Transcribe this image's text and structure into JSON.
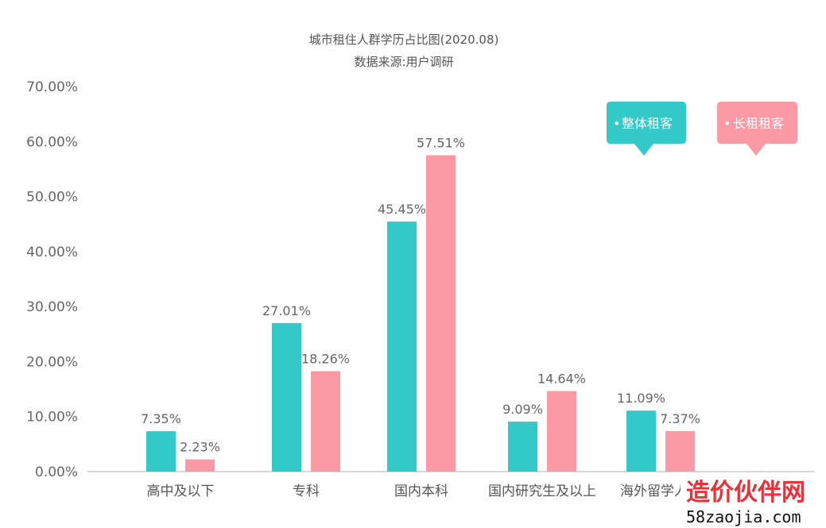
{
  "chart_data": {
    "type": "bar",
    "title": "城市租住人群学历占比图(2020.08)",
    "subtitle": "数据来源:用户调研",
    "categories": [
      "高中及以下",
      "专科",
      "国内本科",
      "国内研究生及以上",
      "海外留学人员"
    ],
    "series": [
      {
        "name": "整体租客",
        "color": "#33c9c9",
        "values": [
          7.35,
          27.01,
          45.45,
          9.09,
          11.09
        ],
        "labels": [
          "7.35%",
          "27.01%",
          "45.45%",
          "9.09%",
          "11.09%"
        ]
      },
      {
        "name": "长租租客",
        "color": "#fb9aa5",
        "values": [
          2.23,
          18.26,
          57.51,
          14.64,
          7.37
        ],
        "labels": [
          "2.23%",
          "18.26%",
          "57.51%",
          "14.64%",
          "7.37%"
        ]
      }
    ],
    "ylim": [
      0,
      70
    ],
    "yticks": [
      "0.00%",
      "10.00%",
      "20.00%",
      "30.00%",
      "40.00%",
      "50.00%",
      "60.00%",
      "70.00%"
    ],
    "grid": false,
    "legend_position": "top-right",
    "xlabel": "",
    "ylabel": ""
  },
  "watermark": {
    "text": "造价伙伴网",
    "url": "58zaojia.com",
    "color": "#e8323a"
  }
}
